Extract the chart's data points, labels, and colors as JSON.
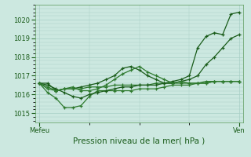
{
  "title": "Pression niveau de la mer( hPa )",
  "xlabel_left": "Mefeu",
  "xlabel_right": "Ven",
  "ylim": [
    1014.5,
    1020.8
  ],
  "yticks": [
    1015,
    1016,
    1017,
    1018,
    1019,
    1020
  ],
  "bg_color": "#cce8e0",
  "grid_color": "#a8cfc6",
  "line_color_dark": "#1a5c1a",
  "line_color_mid": "#2e7a2e",
  "series": [
    [
      1016.6,
      1016.6,
      1016.2,
      1016.3,
      1016.3,
      1016.4,
      1016.5,
      1016.6,
      1016.8,
      1017.0,
      1017.4,
      1017.5,
      1017.3,
      1017.0,
      1016.8,
      1016.6,
      1016.7,
      1016.8,
      1017.0,
      1018.5,
      1019.1,
      1019.3,
      1019.2,
      1020.3,
      1020.4
    ],
    [
      1016.6,
      1016.1,
      1015.8,
      1015.3,
      1015.3,
      1015.4,
      1015.9,
      1016.2,
      1016.2,
      1016.2,
      1016.2,
      1016.2,
      1016.3,
      1016.3,
      1016.3,
      1016.4,
      1016.5,
      1016.5,
      1016.5,
      1016.6,
      1016.6,
      1016.7,
      1016.7,
      1016.7,
      1016.7
    ],
    [
      1016.6,
      1016.3,
      1016.2,
      1016.3,
      1016.3,
      1016.3,
      1016.4,
      1016.4,
      1016.4,
      1016.5,
      1016.5,
      1016.5,
      1016.5,
      1016.5,
      1016.6,
      1016.6,
      1016.6,
      1016.6,
      1016.6,
      1016.6,
      1016.7,
      1016.7,
      1016.7,
      1016.7,
      1016.7
    ],
    [
      1016.6,
      1016.5,
      1016.3,
      1016.1,
      1015.9,
      1015.8,
      1016.0,
      1016.1,
      1016.2,
      1016.3,
      1016.4,
      1016.4,
      1016.5,
      1016.5,
      1016.5,
      1016.6,
      1016.6,
      1016.7,
      1016.8,
      1017.0,
      1017.6,
      1018.0,
      1018.5,
      1019.0,
      1019.2
    ],
    [
      1016.6,
      1016.4,
      1016.2,
      1016.3,
      1016.4,
      1016.2,
      1016.2,
      1016.3,
      1016.5,
      1016.8,
      1017.1,
      1017.3,
      1017.5,
      1017.2,
      1017.0,
      1016.8,
      1016.6,
      1016.7,
      1016.6,
      1016.6,
      1016.6,
      1016.7,
      1016.7,
      1016.7,
      1016.7
    ]
  ],
  "n_points": 25
}
